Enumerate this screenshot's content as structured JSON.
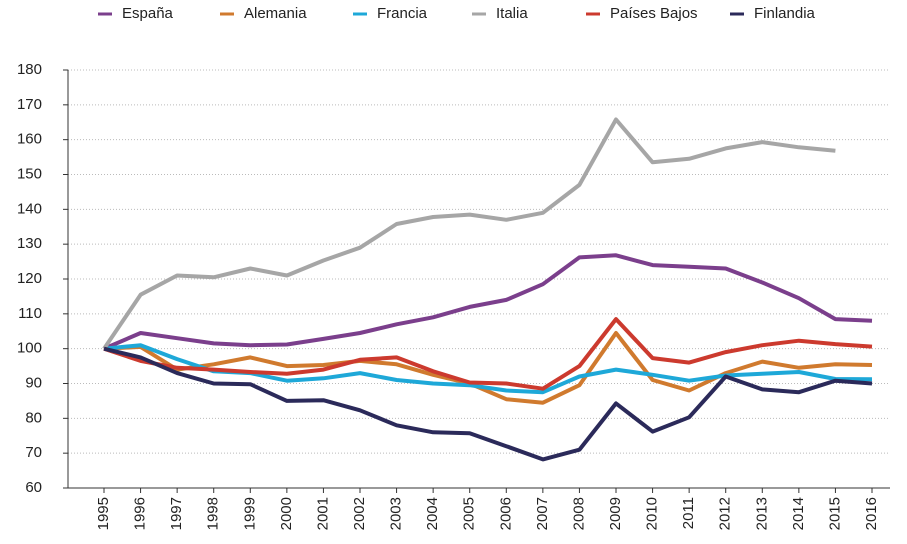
{
  "chart_data": {
    "type": "line",
    "categories": [
      "1995",
      "1996",
      "1997",
      "1998",
      "1999",
      "2000",
      "2001",
      "2002",
      "2003",
      "2004",
      "2005",
      "2006",
      "2007",
      "2008",
      "2009",
      "2010",
      "2011",
      "2012",
      "2013",
      "2014",
      "2015",
      "2016"
    ],
    "series": [
      {
        "name": "España",
        "color": "#7b3f8c",
        "values": [
          100,
          104.5,
          103,
          101.5,
          101,
          101.2,
          102.8,
          104.5,
          107,
          109,
          112,
          114,
          118.5,
          126.2,
          126.8,
          124,
          123.5,
          123,
          119,
          114.5,
          108.5,
          108
        ]
      },
      {
        "name": "Alemania",
        "color": "#d07a2e",
        "values": [
          100,
          100.5,
          94,
          95.5,
          97.5,
          95,
          95.3,
          96.5,
          95.5,
          92.5,
          90,
          85.5,
          84.5,
          89.5,
          104.5,
          91,
          88,
          93,
          96.3,
          94.5,
          95.5,
          95.3
        ]
      },
      {
        "name": "Francia",
        "color": "#1ea8d8",
        "values": [
          100,
          101,
          97,
          93.5,
          93,
          90.8,
          91.5,
          93,
          91,
          90,
          89.5,
          88,
          87.5,
          92,
          94,
          92.5,
          90.8,
          92.3,
          92.8,
          93.3,
          91.3,
          91.2
        ]
      },
      {
        "name": "Italia",
        "color": "#a6a6a6",
        "values": [
          100,
          115.5,
          121,
          120.5,
          123,
          121,
          125.3,
          129,
          135.8,
          137.8,
          138.5,
          137,
          139,
          147,
          165.8,
          153.5,
          154.5,
          157.5,
          159.3,
          157.8,
          156.8,
          null
        ]
      },
      {
        "name": "Países Bajos",
        "color": "#cc3a2e",
        "values": [
          100,
          96.5,
          94.5,
          94,
          93.3,
          92.8,
          94,
          96.8,
          97.5,
          93.5,
          90.3,
          90,
          88.5,
          95,
          108.5,
          97.3,
          96,
          99,
          101,
          102.3,
          101.3,
          100.6
        ]
      },
      {
        "name": "Finlandia",
        "color": "#2b2a5a",
        "values": [
          100,
          97.5,
          93,
          90,
          89.8,
          85,
          85.2,
          82.3,
          78,
          76,
          75.7,
          72,
          68.2,
          71,
          84.3,
          76.2,
          80.3,
          92,
          88.3,
          87.5,
          90.8,
          90
        ]
      }
    ],
    "ylim": [
      60,
      180
    ],
    "yticks": [
      60,
      70,
      80,
      90,
      100,
      110,
      120,
      130,
      140,
      150,
      160,
      170,
      180
    ],
    "grid": true,
    "legend": "top"
  }
}
